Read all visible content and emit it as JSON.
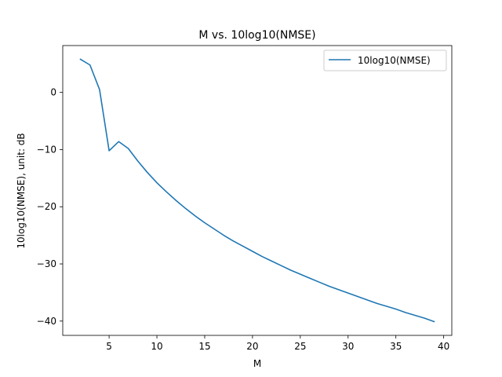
{
  "chart_data": {
    "type": "line",
    "title": "M vs. 10log10(NMSE)",
    "xlabel": "M",
    "ylabel": "10log10(NMSE), unit: dB",
    "xlim": [
      0.15,
      40.85
    ],
    "ylim": [
      -42.5,
      8.2
    ],
    "xticks": [
      5,
      10,
      15,
      20,
      25,
      30,
      35,
      40
    ],
    "yticks": [
      0,
      -10,
      -20,
      -30,
      -40
    ],
    "grid": false,
    "legend_position": "top-right",
    "series": [
      {
        "name": "10log10(NMSE)",
        "color": "#1f77b4",
        "x": [
          2,
          3,
          4,
          5,
          6,
          7,
          8,
          9,
          10,
          11,
          12,
          13,
          14,
          15,
          16,
          17,
          18,
          19,
          20,
          21,
          22,
          23,
          24,
          25,
          26,
          27,
          28,
          29,
          30,
          31,
          32,
          33,
          34,
          35,
          36,
          37,
          38,
          39
        ],
        "y": [
          5.8,
          4.8,
          0.5,
          -10.2,
          -8.6,
          -9.8,
          -12.0,
          -14.0,
          -15.8,
          -17.4,
          -18.9,
          -20.3,
          -21.6,
          -22.8,
          -23.9,
          -25.0,
          -26.0,
          -26.9,
          -27.8,
          -28.7,
          -29.5,
          -30.3,
          -31.1,
          -31.8,
          -32.5,
          -33.2,
          -33.9,
          -34.5,
          -35.1,
          -35.7,
          -36.3,
          -36.9,
          -37.4,
          -37.9,
          -38.5,
          -39.0,
          -39.5,
          -40.1
        ]
      }
    ]
  }
}
